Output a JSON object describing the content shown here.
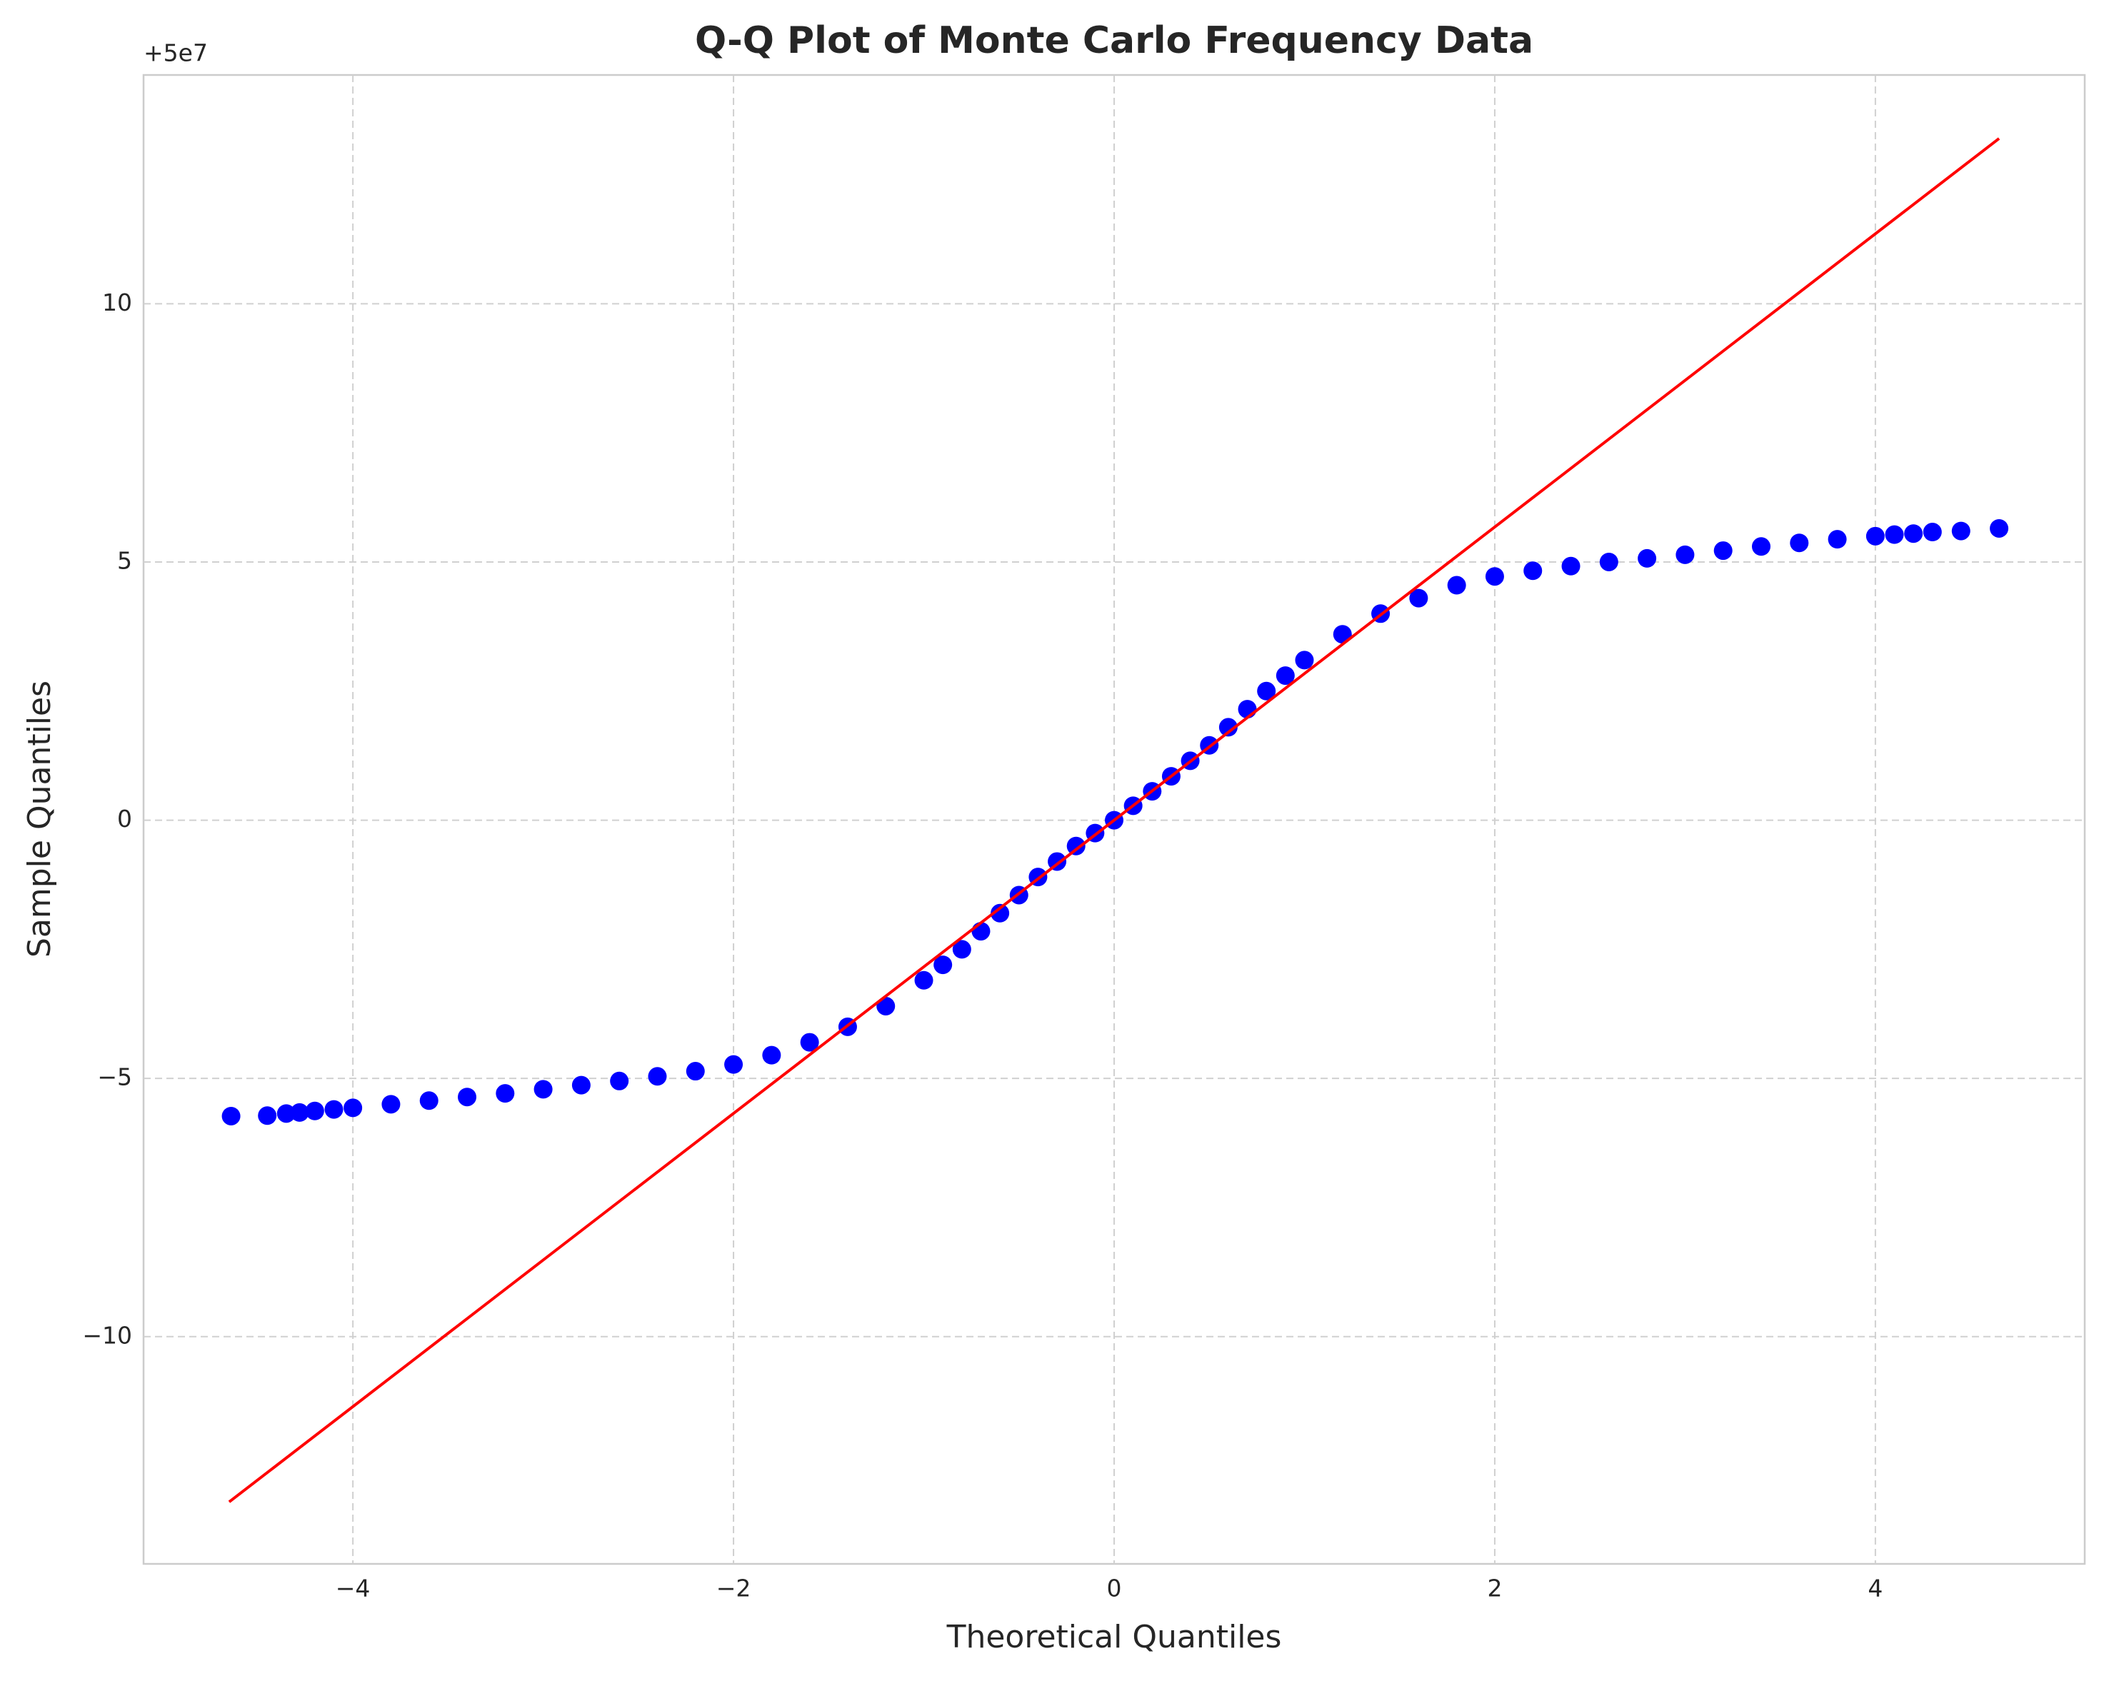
{
  "chart_data": {
    "type": "scatter",
    "title": "Q-Q Plot of Monte Carlo Frequency Data",
    "x_label": "Theoretical Quantiles",
    "y_label": "Sample Quantiles",
    "y_offset_text": "+5e7",
    "xlim": [
      -5.1,
      5.1
    ],
    "ylim": [
      -14.4,
      14.43
    ],
    "xticks": [
      {
        "value": -4,
        "label": "−4"
      },
      {
        "value": -2,
        "label": "−2"
      },
      0,
      2,
      4
    ],
    "yticks": [
      {
        "value": -10,
        "label": "−10"
      },
      {
        "value": -5,
        "label": "−5"
      },
      0,
      5,
      10
    ],
    "grid": true,
    "series": [
      {
        "style": "points",
        "color": "#0000ff",
        "x": [
          -4.64,
          -4.45,
          -4.35,
          -4.28,
          -4.2,
          -4.1,
          -4.0,
          -3.8,
          -3.6,
          -3.4,
          -3.2,
          -3.0,
          -2.8,
          -2.6,
          -2.4,
          -2.2,
          -2.0,
          -1.8,
          -1.6,
          -1.4,
          -1.2,
          -1.0,
          -0.9,
          -0.8,
          -0.7,
          -0.6,
          -0.5,
          -0.4,
          -0.3,
          -0.2,
          -0.1,
          0,
          0.1,
          0.2,
          0.3,
          0.4,
          0.5,
          0.6,
          0.7,
          0.8,
          0.9,
          1.0,
          1.2,
          1.4,
          1.6,
          1.8,
          2.0,
          2.2,
          2.4,
          2.6,
          2.8,
          3.0,
          3.2,
          3.4,
          3.6,
          3.8,
          4.0,
          4.1,
          4.2,
          4.3,
          4.45,
          4.65
        ],
        "values": [
          -5.73,
          -5.72,
          -5.68,
          -5.66,
          -5.63,
          -5.6,
          -5.57,
          -5.5,
          -5.43,
          -5.36,
          -5.29,
          -5.21,
          -5.13,
          -5.05,
          -4.96,
          -4.86,
          -4.73,
          -4.55,
          -4.3,
          -4.0,
          -3.6,
          -3.1,
          -2.8,
          -2.5,
          -2.15,
          -1.8,
          -1.45,
          -1.1,
          -0.8,
          -0.5,
          -0.25,
          0,
          0.28,
          0.56,
          0.85,
          1.15,
          1.45,
          1.8,
          2.15,
          2.5,
          2.8,
          3.1,
          3.6,
          4.0,
          4.3,
          4.55,
          4.72,
          4.83,
          4.92,
          5.0,
          5.07,
          5.14,
          5.22,
          5.3,
          5.37,
          5.44,
          5.5,
          5.53,
          5.55,
          5.58,
          5.6,
          5.65
        ]
      },
      {
        "style": "line",
        "color": "#ff0000",
        "x": [
          -4.65,
          4.65
        ],
        "values": [
          -13.2,
          13.2
        ]
      }
    ]
  }
}
